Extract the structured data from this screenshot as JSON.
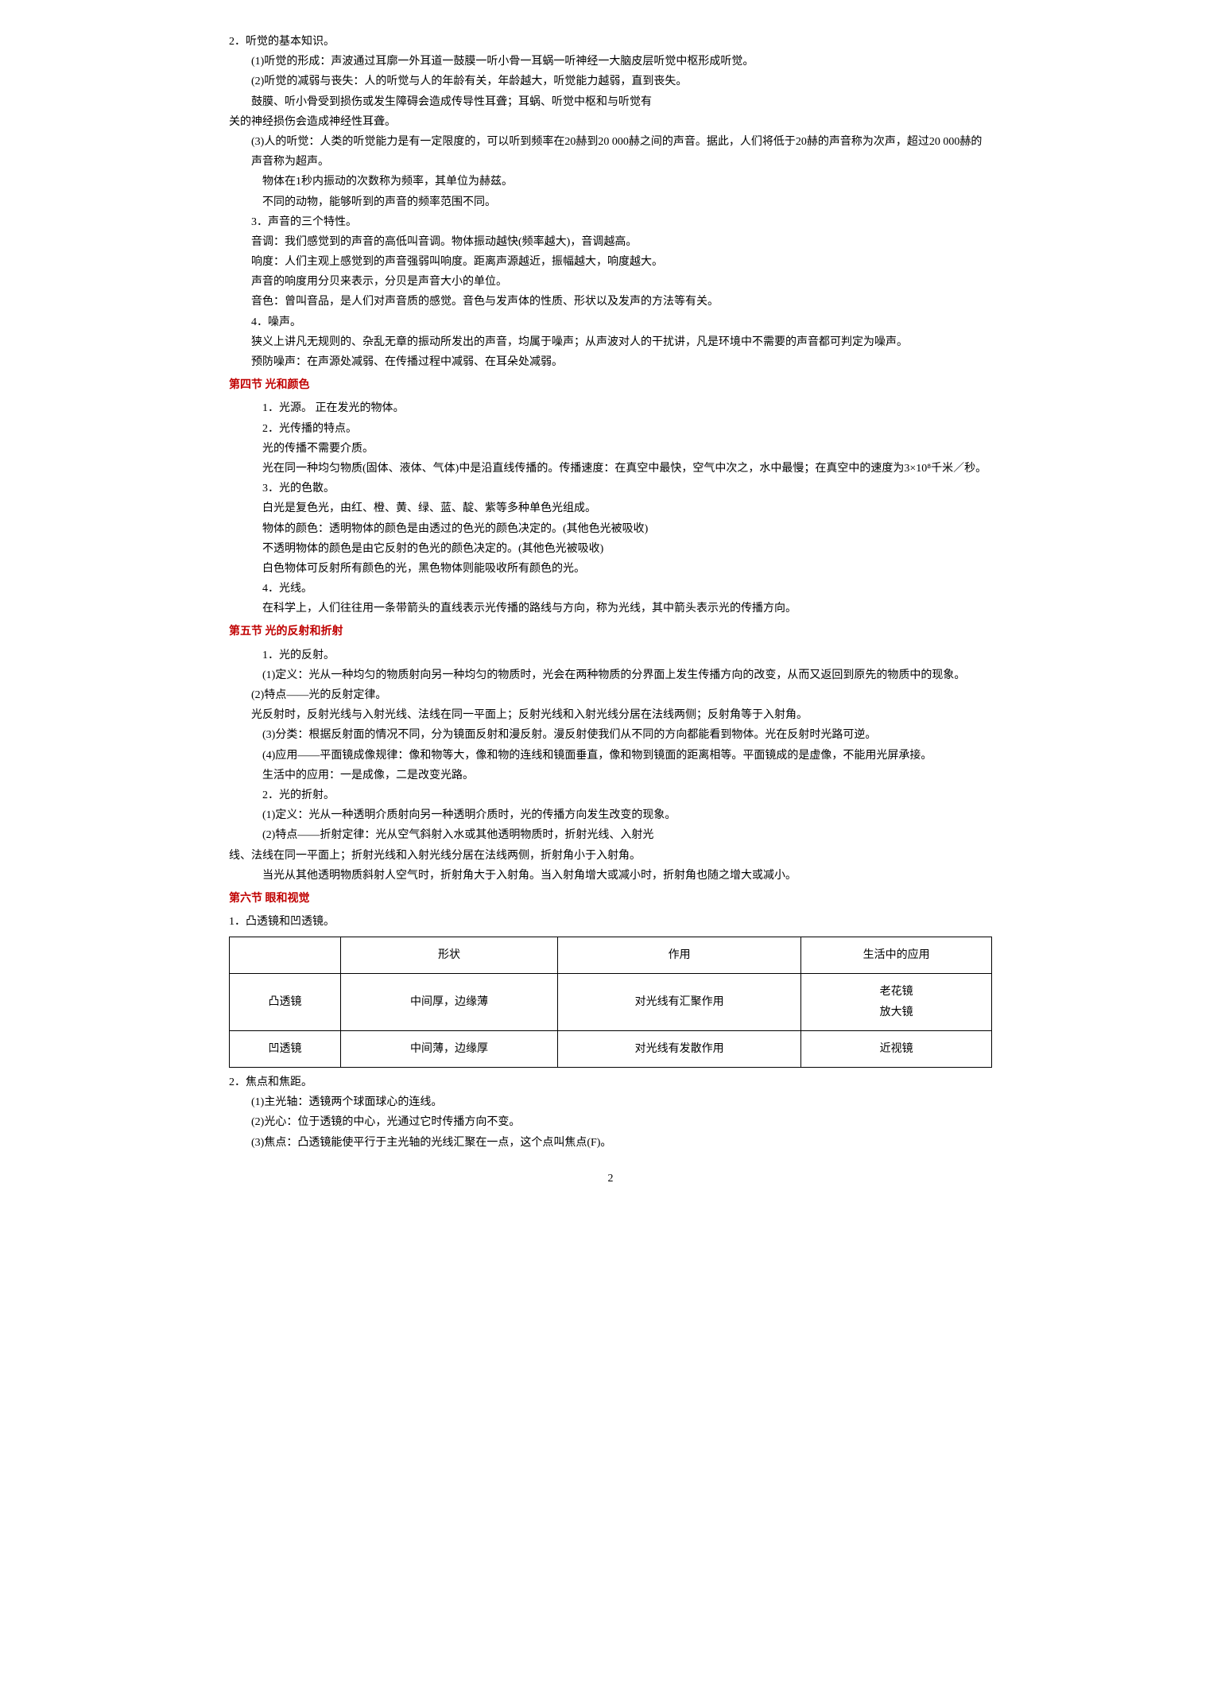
{
  "intro": {
    "l1": "2．听觉的基本知识。",
    "l2": "(1)听觉的形成：声波通过耳廓一外耳道一鼓膜一听小骨一耳蜗一听神经一大脑皮层听觉中枢形成听觉。",
    "l3": "(2)听觉的减弱与丧失：人的听觉与人的年龄有关，年龄越大，听觉能力越弱，直到丧失。",
    "l4": "鼓膜、听小骨受到损伤或发生障碍会造成传导性耳聋；耳蜗、听觉中枢和与听觉有",
    "l5": "关的神经损伤会造成神经性耳聋。",
    "l6": "(3)人的听觉：人类的听觉能力是有一定限度的，可以听到频率在20赫到20 000赫之间的声音。据此，人们将低于20赫的声音称为次声，超过20 000赫的声音称为超声。",
    "l7": "物体在1秒内振动的次数称为频率，其单位为赫兹。",
    "l8": "不同的动物，能够听到的声音的频率范围不同。",
    "l9": "3．声音的三个特性。",
    "l10": "音调：我们感觉到的声音的高低叫音调。物体振动越快(频率越大)，音调越高。",
    "l11": "响度：人们主观上感觉到的声音强弱叫响度。距离声源越近，振幅越大，响度越大。",
    "l12": "声音的响度用分贝来表示，分贝是声音大小的单位。",
    "l13": "音色：曾叫音品，是人们对声音质的感觉。音色与发声体的性质、形状以及发声的方法等有关。",
    "l14": "4．噪声。",
    "l15": "狭义上讲凡无规则的、杂乱无章的振动所发出的声音，均属于噪声；从声波对人的干扰讲，凡是环境中不需要的声音都可判定为噪声。",
    "l16": "预防噪声：在声源处减弱、在传播过程中减弱、在耳朵处减弱。"
  },
  "sec4": {
    "title": "第四节 光和颜色",
    "l1": "1．光源。  正在发光的物体。",
    "l2": "2．光传播的特点。",
    "l3": "光的传播不需要介质。",
    "l4": "光在同一种均匀物质(固体、液体、气体)中是沿直线传播的。传播速度：在真空中最快，空气中次之，水中最慢；在真空中的速度为3×10⁸千米／秒。",
    "l5": "3．光的色散。",
    "l6": "白光是复色光，由红、橙、黄、绿、蓝、靛、紫等多种单色光组成。",
    "l7": "物体的颜色：透明物体的颜色是由透过的色光的颜色决定的。(其他色光被吸收)",
    "l8": "不透明物体的颜色是由它反射的色光的颜色决定的。(其他色光被吸收)",
    "l9": "白色物体可反射所有颜色的光，黑色物体则能吸收所有颜色的光。",
    "l10": "4．光线。",
    "l11": "在科学上，人们往往用一条带箭头的直线表示光传播的路线与方向，称为光线，其中箭头表示光的传播方向。"
  },
  "sec5": {
    "title": "第五节 光的反射和折射",
    "l1": "1．光的反射。",
    "l2": "(1)定义：光从一种均匀的物质射向另一种均匀的物质时，光会在两种物质的分界面上发生传播方向的改变，从而又返回到原先的物质中的现象。",
    "l3": "(2)特点——光的反射定律。",
    "l4": "光反射时，反射光线与入射光线、法线在同一平面上；反射光线和入射光线分居在法线两侧；反射角等于入射角。",
    "l5": "(3)分类：根据反射面的情况不同，分为镜面反射和漫反射。漫反射使我们从不同的方向都能看到物体。光在反射时光路可逆。",
    "l6": "(4)应用——平面镜成像规律：像和物等大，像和物的连线和镜面垂直，像和物到镜面的距离相等。平面镜成的是虚像，不能用光屏承接。",
    "l7": "生活中的应用：一是成像，二是改变光路。",
    "l8": "2．光的折射。",
    "l9": "(1)定义：光从一种透明介质射向另一种透明介质时，光的传播方向发生改变的现象。",
    "l10": "(2)特点——折射定律：光从空气斜射入水或其他透明物质时，折射光线、入射光",
    "l11": "线、法线在同一平面上；折射光线和入射光线分居在法线两侧，折射角小于入射角。",
    "l12": "当光从其他透明物质斜射人空气时，折射角大于入射角。当入射角增大或减小时，折射角也随之增大或减小。"
  },
  "sec6": {
    "title": "第六节 眼和视觉",
    "l1": "1．凸透镜和凹透镜。",
    "table": {
      "headers": [
        "",
        "形状",
        "作用",
        "生活中的应用"
      ],
      "rows": [
        [
          "凸透镜",
          "中间厚，边缘薄",
          "对光线有汇聚作用",
          "老花镜\n放大镜"
        ],
        [
          "凹透镜",
          "中间薄，边缘厚",
          "对光线有发散作用",
          "近视镜"
        ]
      ]
    },
    "l2": "2．焦点和焦距。",
    "l3": "(1)主光轴：透镜两个球面球心的连线。",
    "l4": "(2)光心：位于透镜的中心，光通过它时传播方向不变。",
    "l5": "(3)焦点：凸透镜能使平行于主光轴的光线汇聚在一点，这个点叫焦点(F)。"
  },
  "pageNumber": "2"
}
